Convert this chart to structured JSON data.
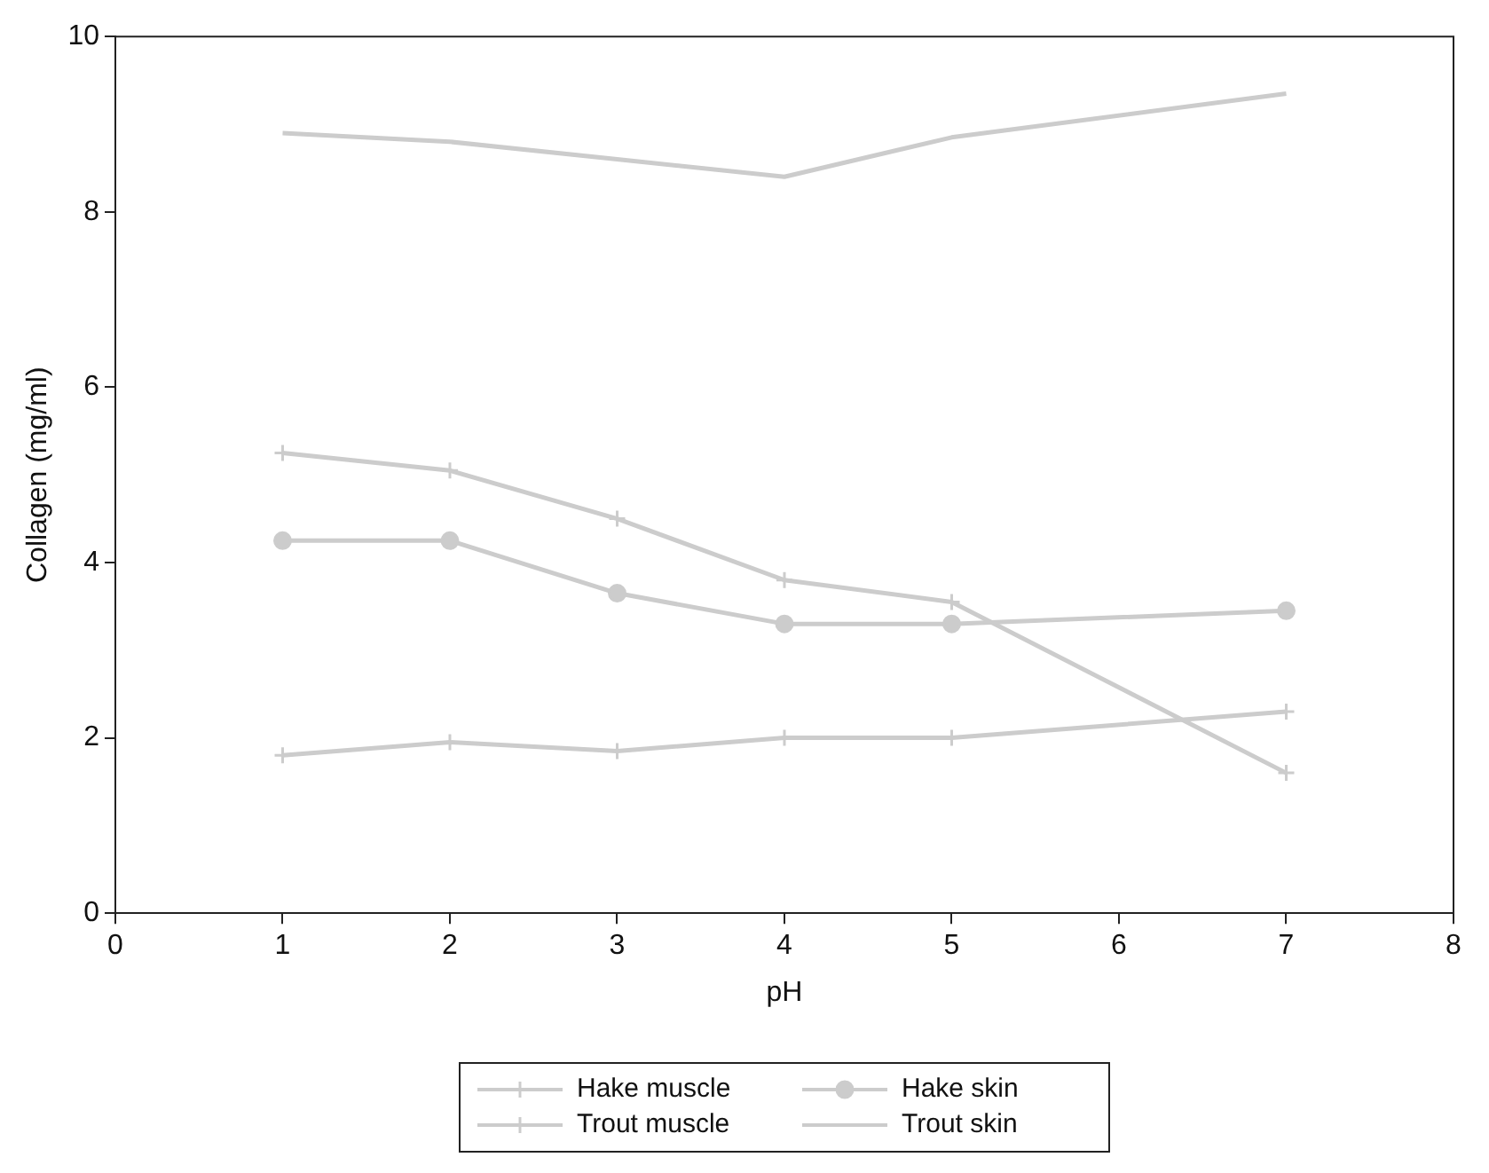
{
  "chart_data": {
    "type": "line",
    "xlabel": "pH",
    "ylabel": "Collagen (mg/ml)",
    "x": [
      1,
      2,
      3,
      4,
      5,
      7
    ],
    "xlim": [
      0,
      8
    ],
    "xticks": [
      0,
      1,
      2,
      3,
      4,
      5,
      6,
      7,
      8
    ],
    "ylim": [
      0,
      10
    ],
    "yticks": [
      0,
      2,
      4,
      6,
      8,
      10
    ],
    "grid": false,
    "legend": "bottom",
    "line_style": "solid",
    "series": [
      {
        "name": "Hake muscle",
        "color": "#cccccc",
        "marker": "cross",
        "values": [
          1.8,
          1.95,
          1.85,
          2.0,
          2.0,
          2.3
        ]
      },
      {
        "name": "Hake skin",
        "color": "#cccccc",
        "marker": "circle",
        "values": [
          4.25,
          4.25,
          3.65,
          3.3,
          3.3,
          3.45
        ]
      },
      {
        "name": "Trout muscle",
        "color": "#cccccc",
        "marker": "cross",
        "values": [
          5.25,
          5.05,
          4.5,
          3.8,
          3.55,
          1.6
        ]
      },
      {
        "name": "Trout skin",
        "color": "#cccccc",
        "marker": "none",
        "values": [
          8.9,
          8.8,
          8.6,
          8.4,
          8.85,
          9.35
        ]
      }
    ]
  }
}
